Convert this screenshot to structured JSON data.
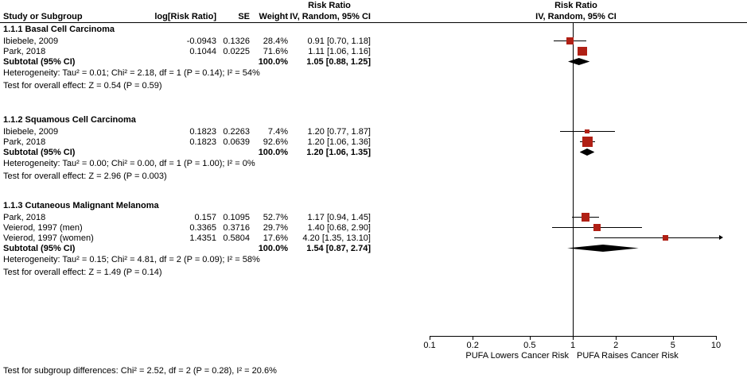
{
  "colors": {
    "square": "#b02015",
    "ci_line": "#000000",
    "diamond": "#000000",
    "axis": "#000000",
    "background": "#ffffff"
  },
  "header": {
    "col_study": "Study or Subgroup",
    "col_log_rr": "log[Risk Ratio]",
    "col_se": "SE",
    "col_weight": "Weight",
    "effect_title": "Risk Ratio",
    "effect_sub": "IV, Random, 95% CI",
    "plot_title": "Risk Ratio",
    "plot_sub": "IV, Random, 95% CI"
  },
  "chart_data": {
    "type": "forest",
    "effect_measure": "Risk Ratio",
    "model": "IV, Random, 95% CI",
    "axis": {
      "scale": "log",
      "min": 0.1,
      "max": 10,
      "ticks": [
        0.1,
        0.2,
        0.5,
        1,
        2,
        5,
        10
      ],
      "tick_labels": [
        "0.1",
        "0.2",
        "0.5",
        "1",
        "2",
        "5",
        "10"
      ],
      "label_left": "PUFA Lowers Cancer Risk",
      "label_right": "PUFA Raises Cancer Risk"
    },
    "groups": [
      {
        "title": "1.1.1 Basal Cell Carcinoma",
        "studies": [
          {
            "label": "Ibiebele, 2009",
            "log_rr": "-0.0943",
            "se": "0.1326",
            "weight": "28.4%",
            "weight_value": 28.4,
            "ci_text": "0.91 [0.70, 1.18]",
            "rr": 0.91,
            "low": 0.7,
            "high": 1.18
          },
          {
            "label": "Park, 2018",
            "log_rr": "0.1044",
            "se": "0.0225",
            "weight": "71.6%",
            "weight_value": 71.6,
            "ci_text": "1.11 [1.06, 1.16]",
            "rr": 1.11,
            "low": 1.06,
            "high": 1.16
          }
        ],
        "subtotal": {
          "label": "Subtotal (95% CI)",
          "weight": "100.0%",
          "ci_text": "1.05 [0.88, 1.25]",
          "rr": 1.05,
          "low": 0.88,
          "high": 1.25
        },
        "heterogeneity": "Heterogeneity: Tau² = 0.01; Chi² = 2.18, df = 1 (P = 0.14); I² = 54%",
        "overall_effect": "Test for overall effect: Z = 0.54 (P = 0.59)"
      },
      {
        "title": "1.1.2 Squamous Cell Carcinoma",
        "studies": [
          {
            "label": "Ibiebele, 2009",
            "log_rr": "0.1823",
            "se": "0.2263",
            "weight": "7.4%",
            "weight_value": 7.4,
            "ci_text": "1.20 [0.77, 1.87]",
            "rr": 1.2,
            "low": 0.77,
            "high": 1.87
          },
          {
            "label": "Park, 2018",
            "log_rr": "0.1823",
            "se": "0.0639",
            "weight": "92.6%",
            "weight_value": 92.6,
            "ci_text": "1.20 [1.06, 1.36]",
            "rr": 1.2,
            "low": 1.06,
            "high": 1.36
          }
        ],
        "subtotal": {
          "label": "Subtotal (95% CI)",
          "weight": "100.0%",
          "ci_text": "1.20 [1.06, 1.35]",
          "rr": 1.2,
          "low": 1.06,
          "high": 1.35
        },
        "heterogeneity": "Heterogeneity: Tau² = 0.00; Chi² = 0.00, df = 1 (P = 1.00); I² = 0%",
        "overall_effect": "Test for overall effect: Z = 2.96 (P = 0.003)"
      },
      {
        "title": "1.1.3 Cutaneous Malignant Melanoma",
        "studies": [
          {
            "label": "Park, 2018",
            "log_rr": "0.157",
            "se": "0.1095",
            "weight": "52.7%",
            "weight_value": 52.7,
            "ci_text": "1.17 [0.94, 1.45]",
            "rr": 1.17,
            "low": 0.94,
            "high": 1.45
          },
          {
            "label": "Veierod, 1997 (men)",
            "log_rr": "0.3365",
            "se": "0.3716",
            "weight": "29.7%",
            "weight_value": 29.7,
            "ci_text": "1.40 [0.68, 2.90]",
            "rr": 1.4,
            "low": 0.68,
            "high": 2.9
          },
          {
            "label": "Veierod, 1997 (women)",
            "log_rr": "1.4351",
            "se": "0.5804",
            "weight": "17.6%",
            "weight_value": 17.6,
            "ci_text": "4.20 [1.35, 13.10]",
            "rr": 4.2,
            "low": 1.35,
            "high": 13.1
          }
        ],
        "subtotal": {
          "label": "Subtotal (95% CI)",
          "weight": "100.0%",
          "ci_text": "1.54 [0.87, 2.74]",
          "rr": 1.54,
          "low": 0.87,
          "high": 2.74
        },
        "heterogeneity": "Heterogeneity: Tau² = 0.15; Chi² = 4.81, df = 2 (P = 0.09); I² = 58%",
        "overall_effect": "Test for overall effect: Z = 1.49 (P = 0.14)"
      }
    ],
    "footnote": "Test for subgroup differences: Chi² = 2.52, df = 2 (P = 0.28), I² = 20.6%"
  }
}
